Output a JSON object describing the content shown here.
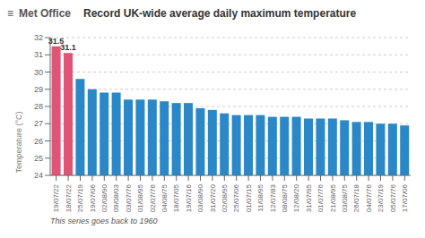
{
  "chart_data": {
    "type": "bar",
    "title": "Record UK-wide average daily maximum temperature",
    "subtitle": "This series goes back to 1960",
    "annotations": [
      "≡",
      "Met Office"
    ],
    "ylabel": "Temperature (°C)",
    "categories": [
      "19/07/22",
      "18/07/22",
      "25/07/19",
      "19/07/06",
      "02/08/90",
      "09/08/03",
      "03/07/76",
      "01/08/95",
      "02/07/76",
      "04/08/75",
      "18/07/05",
      "19/07/16",
      "03/08/90",
      "31/07/20",
      "02/08/95",
      "25/07/06",
      "01/07/15",
      "11/08/95",
      "12/07/83",
      "08/08/75",
      "12/08/20",
      "31/07/95",
      "01/07/76",
      "21/08/95",
      "03/08/75",
      "26/07/18",
      "04/07/76",
      "23/07/19",
      "05/07/76",
      "17/07/06"
    ],
    "values": [
      31.5,
      31.1,
      29.6,
      29.0,
      28.8,
      28.8,
      28.4,
      28.4,
      28.4,
      28.3,
      28.2,
      28.2,
      27.9,
      27.8,
      27.6,
      27.5,
      27.5,
      27.5,
      27.4,
      27.4,
      27.4,
      27.3,
      27.3,
      27.3,
      27.2,
      27.1,
      27.1,
      27.0,
      27.0,
      26.9
    ],
    "value_labels": [
      "31.5",
      "31.1",
      null,
      null,
      null,
      null,
      null,
      null,
      null,
      null,
      null,
      null,
      null,
      null,
      null,
      null,
      null,
      null,
      null,
      null,
      null,
      null,
      null,
      null,
      null,
      null,
      null,
      null,
      null,
      null
    ],
    "data_labels": true,
    "colors": [
      "#e05575",
      "#e05575",
      "#2a87c8",
      "#2a87c8",
      "#2a87c8",
      "#2a87c8",
      "#2a87c8",
      "#2a87c8",
      "#2a87c8",
      "#2a87c8",
      "#2a87c8",
      "#2a87c8",
      "#2a87c8",
      "#2a87c8",
      "#2a87c8",
      "#2a87c8",
      "#2a87c8",
      "#2a87c8",
      "#2a87c8",
      "#2a87c8",
      "#2a87c8",
      "#2a87c8",
      "#2a87c8",
      "#2a87c8",
      "#2a87c8",
      "#2a87c8",
      "#2a87c8",
      "#2a87c8",
      "#2a87c8",
      "#2a87c8"
    ],
    "ylim": [
      24,
      32
    ],
    "yticks": [
      24,
      25,
      26,
      27,
      28,
      29,
      30,
      31,
      32
    ],
    "grid": true
  }
}
